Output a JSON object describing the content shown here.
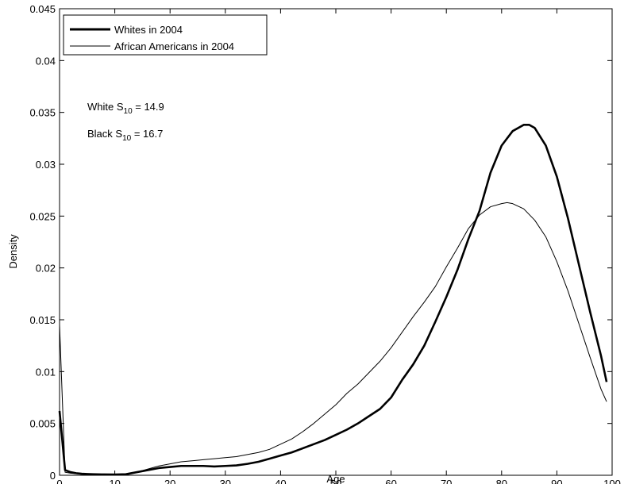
{
  "chart_data": {
    "type": "line",
    "title": "",
    "xlabel": "Age",
    "ylabel": "Density",
    "xlim": [
      0,
      100
    ],
    "ylim": [
      0,
      0.045
    ],
    "grid": false,
    "legend_position": "top-left",
    "x_ticks": [
      "0",
      "10",
      "20",
      "30",
      "40",
      "50",
      "60",
      "70",
      "80",
      "90",
      "100"
    ],
    "y_ticks": [
      "0",
      "0.005",
      "0.01",
      "0.015",
      "0.02",
      "0.025",
      "0.03",
      "0.035",
      "0.04",
      "0.045"
    ],
    "annotations": [
      {
        "prefix": "White S",
        "subscript": "10",
        "suffix": " = 14.9"
      },
      {
        "prefix": "Black S",
        "subscript": "10",
        "suffix": " = 16.7"
      }
    ],
    "series": [
      {
        "name": "Whites in 2004",
        "line_style": "thick",
        "color": "#000000",
        "x": [
          0,
          1,
          2,
          3,
          4,
          5,
          6,
          8,
          10,
          12,
          14,
          16,
          18,
          20,
          22,
          24,
          26,
          28,
          30,
          32,
          34,
          36,
          38,
          40,
          42,
          44,
          46,
          48,
          50,
          52,
          54,
          56,
          58,
          60,
          62,
          64,
          66,
          68,
          70,
          72,
          74,
          76,
          78,
          80,
          82,
          84,
          85,
          86,
          88,
          90,
          92,
          94,
          96,
          98,
          99
        ],
        "y": [
          0.0062,
          0.0005,
          0.0003,
          0.0002,
          0.00015,
          0.00012,
          0.0001,
          8e-05,
          7e-05,
          0.0001,
          0.0003,
          0.0005,
          0.0007,
          0.0008,
          0.0009,
          0.0009,
          0.0009,
          0.00085,
          0.0009,
          0.00095,
          0.0011,
          0.0013,
          0.0016,
          0.0019,
          0.0022,
          0.0026,
          0.003,
          0.0034,
          0.0039,
          0.0044,
          0.005,
          0.0057,
          0.0064,
          0.0075,
          0.0092,
          0.0107,
          0.0125,
          0.0148,
          0.0172,
          0.0198,
          0.0228,
          0.0255,
          0.0292,
          0.0318,
          0.0332,
          0.0338,
          0.0338,
          0.0335,
          0.0318,
          0.0288,
          0.0248,
          0.0203,
          0.0158,
          0.0115,
          0.009
        ]
      },
      {
        "name": "African Americans in 2004",
        "line_style": "thin",
        "color": "#000000",
        "x": [
          0,
          1,
          2,
          3,
          4,
          5,
          6,
          8,
          10,
          12,
          14,
          16,
          18,
          20,
          22,
          24,
          26,
          28,
          30,
          32,
          34,
          36,
          38,
          40,
          42,
          44,
          46,
          48,
          50,
          52,
          54,
          56,
          58,
          60,
          62,
          64,
          66,
          68,
          70,
          72,
          74,
          76,
          78,
          80,
          81,
          82,
          84,
          86,
          88,
          90,
          92,
          94,
          96,
          98,
          99
        ],
        "y": [
          0.0145,
          0.0003,
          0.0002,
          0.00015,
          0.0001,
          0.0001,
          0.0001,
          8e-05,
          7e-05,
          0.0001,
          0.0003,
          0.0006,
          0.0009,
          0.0011,
          0.0013,
          0.0014,
          0.0015,
          0.0016,
          0.0017,
          0.0018,
          0.002,
          0.0022,
          0.0025,
          0.003,
          0.0035,
          0.0042,
          0.005,
          0.0059,
          0.0068,
          0.0079,
          0.0088,
          0.0099,
          0.011,
          0.0123,
          0.0138,
          0.0153,
          0.0167,
          0.0182,
          0.0201,
          0.0219,
          0.0238,
          0.0251,
          0.0259,
          0.0262,
          0.0263,
          0.0262,
          0.0257,
          0.0246,
          0.023,
          0.0206,
          0.0178,
          0.0146,
          0.0114,
          0.0083,
          0.0071
        ]
      }
    ]
  }
}
